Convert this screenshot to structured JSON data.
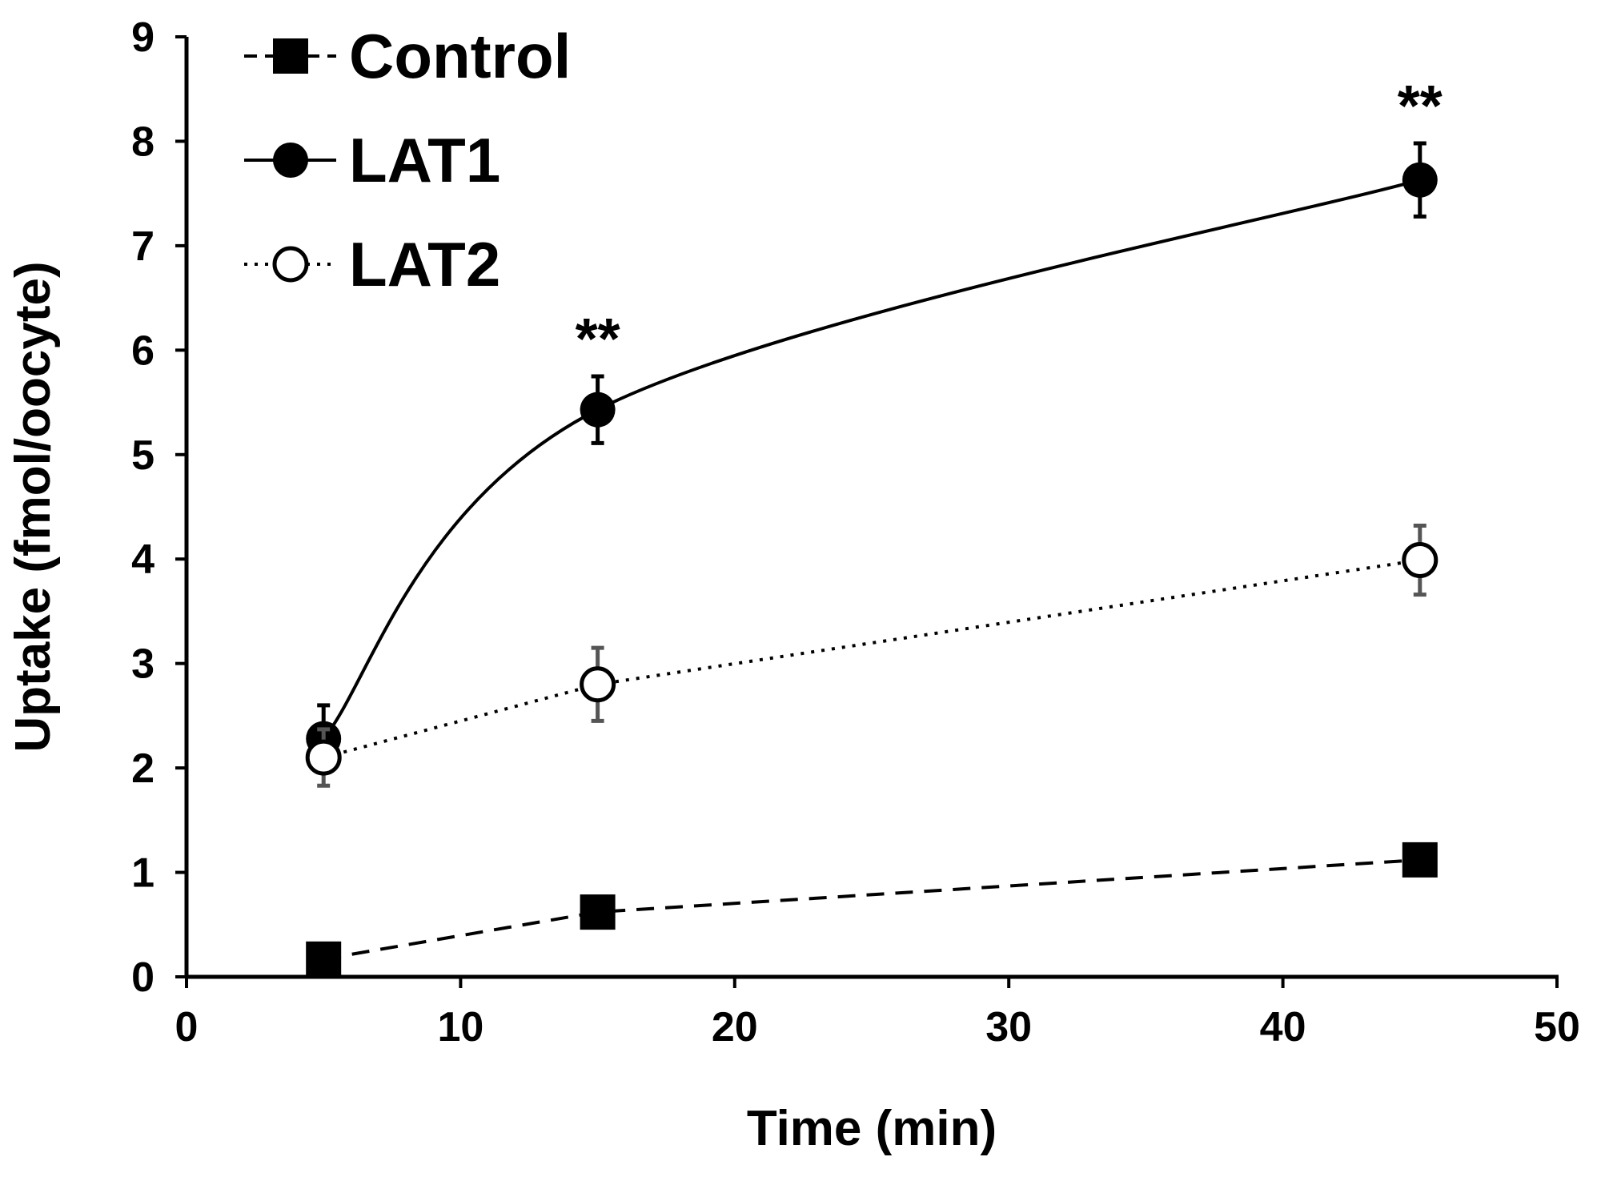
{
  "chart_data": {
    "type": "line",
    "xlabel": "Time (min)",
    "ylabel": "Uptake (fmol/oocyte)",
    "xlim": [
      0,
      50
    ],
    "ylim": [
      0,
      9
    ],
    "xticks": [
      0,
      10,
      20,
      30,
      40,
      50
    ],
    "yticks": [
      0,
      1,
      2,
      3,
      4,
      5,
      6,
      7,
      8,
      9
    ],
    "grid": false,
    "legend_position": "top-left",
    "x": [
      5,
      15,
      45
    ],
    "series": [
      {
        "name": "Control",
        "values": [
          0.17,
          0.62,
          1.12
        ],
        "errors": [
          0,
          0,
          0
        ],
        "marker": "filled-square",
        "line": "dashed",
        "color": "#000000"
      },
      {
        "name": "LAT1",
        "values": [
          2.28,
          5.43,
          7.63
        ],
        "errors": [
          0.32,
          0.32,
          0.35
        ],
        "marker": "filled-circle",
        "line": "solid-smooth",
        "color": "#000000"
      },
      {
        "name": "LAT2",
        "values": [
          2.1,
          2.8,
          3.99
        ],
        "errors": [
          0.27,
          0.35,
          0.33
        ],
        "marker": "open-circle",
        "line": "dotted",
        "color": "#000000"
      }
    ],
    "annotations": [
      {
        "text": "**",
        "x": 15,
        "series": "LAT1"
      },
      {
        "text": "**",
        "x": 45,
        "series": "LAT1"
      }
    ]
  }
}
